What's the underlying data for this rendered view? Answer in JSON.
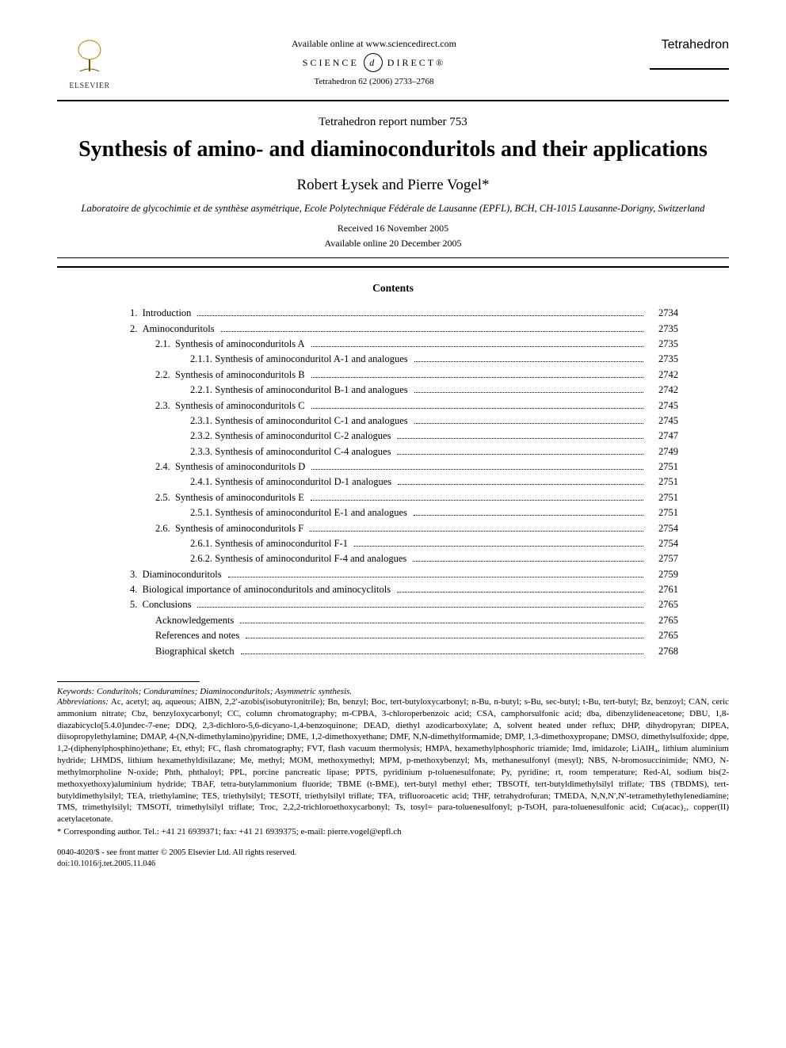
{
  "header": {
    "publisher": "ELSEVIER",
    "available_line": "Available online at www.sciencedirect.com",
    "sd_left": "SCIENCE",
    "sd_glyph": "d",
    "sd_right": "DIRECT®",
    "citation": "Tetrahedron 62 (2006) 2733–2768",
    "journal": "Tetrahedron"
  },
  "report_line": "Tetrahedron report number 753",
  "title": "Synthesis of amino- and diaminoconduritols and their applications",
  "authors": "Robert Łysek and Pierre Vogel*",
  "affiliation": "Laboratoire de glycochimie et de synthèse asymétrique, Ecole Polytechnique Fédérale de Lausanne (EPFL), BCH, CH-1015 Lausanne-Dorigny, Switzerland",
  "received": "Received 16 November 2005",
  "online": "Available online 20 December 2005",
  "contents_heading": "Contents",
  "toc": [
    {
      "num": "1.",
      "label": "Introduction",
      "page": "2734",
      "indent": 1
    },
    {
      "num": "2.",
      "label": "Aminoconduritols",
      "page": "2735",
      "indent": 1
    },
    {
      "num": "2.1.",
      "label": "Synthesis of aminoconduritols A",
      "page": "2735",
      "indent": 2
    },
    {
      "num": "2.1.1.",
      "label": "Synthesis of aminoconduritol A-1 and analogues",
      "page": "2735",
      "indent": 3
    },
    {
      "num": "2.2.",
      "label": "Synthesis of aminoconduritols B",
      "page": "2742",
      "indent": 2
    },
    {
      "num": "2.2.1.",
      "label": "Synthesis of aminoconduritol B-1 and analogues",
      "page": "2742",
      "indent": 3
    },
    {
      "num": "2.3.",
      "label": "Synthesis of aminoconduritols C",
      "page": "2745",
      "indent": 2
    },
    {
      "num": "2.3.1.",
      "label": "Synthesis of aminoconduritol C-1 and analogues",
      "page": "2745",
      "indent": 3
    },
    {
      "num": "2.3.2.",
      "label": "Synthesis of aminoconduritol C-2 analogues",
      "page": "2747",
      "indent": 3
    },
    {
      "num": "2.3.3.",
      "label": "Synthesis of aminoconduritol C-4 analogues",
      "page": "2749",
      "indent": 3
    },
    {
      "num": "2.4.",
      "label": "Synthesis of aminoconduritols D",
      "page": "2751",
      "indent": 2
    },
    {
      "num": "2.4.1.",
      "label": "Synthesis of aminoconduritol D-1 analogues",
      "page": "2751",
      "indent": 3
    },
    {
      "num": "2.5.",
      "label": "Synthesis of aminoconduritols E",
      "page": "2751",
      "indent": 2
    },
    {
      "num": "2.5.1.",
      "label": "Synthesis of aminoconduritol E-1 and analogues",
      "page": "2751",
      "indent": 3
    },
    {
      "num": "2.6.",
      "label": "Synthesis of aminoconduritols F",
      "page": "2754",
      "indent": 2
    },
    {
      "num": "2.6.1.",
      "label": "Synthesis of aminoconduritol F-1",
      "page": "2754",
      "indent": 3
    },
    {
      "num": "2.6.2.",
      "label": "Synthesis of aminoconduritol F-4 and analogues",
      "page": "2757",
      "indent": 3
    },
    {
      "num": "3.",
      "label": "Diaminoconduritols",
      "page": "2759",
      "indent": 1
    },
    {
      "num": "4.",
      "label": "Biological importance of aminoconduritols and aminocyclitols",
      "page": "2761",
      "indent": 1
    },
    {
      "num": "5.",
      "label": "Conclusions",
      "page": "2765",
      "indent": 1
    },
    {
      "num": "",
      "label": "Acknowledgements",
      "page": "2765",
      "indent": 2
    },
    {
      "num": "",
      "label": "References and notes",
      "page": "2765",
      "indent": 2
    },
    {
      "num": "",
      "label": "Biographical sketch",
      "page": "2768",
      "indent": 2
    }
  ],
  "keywords_label": "Keywords:",
  "keywords": " Conduritols; Conduramines; Diaminoconduritols; Asymmetric synthesis.",
  "abbrev_label": "Abbreviations:",
  "abbrev": " Ac, acetyl; aq, aqueous; AIBN, 2,2′-azobis(isobutyronitrile); Bn, benzyl; Boc, tert-butyloxycarbonyl; n-Bu, n-butyl; s-Bu, sec-butyl; t-Bu, tert-butyl; Bz, benzoyl; CAN, ceric ammonium nitrate; Cbz, benzyloxycarbonyl; CC, column chromatography; m-CPBA, 3-chloroperbenzoic acid; CSA, camphorsulfonic acid; dba, dibenzylideneacetone; DBU, 1,8-diazabicyclo[5.4.0]undec-7-ene; DDQ, 2,3-dichloro-5,6-dicyano-1,4-benzoquinone; DEAD, diethyl azodicarboxylate; Δ, solvent heated under reflux; DHP, dihydropyran; DIPEA, diisopropylethylamine; DMAP, 4-(N,N-dimethylamino)pyridine; DME, 1,2-dimethoxyethane; DMF, N,N-dimethylformamide; DMP, 1,3-dimethoxypropane; DMSO, dimethylsulfoxide; dppe, 1,2-(diphenylphosphino)ethane; Et, ethyl; FC, flash chromatography; FVT, flash vacuum thermolysis; HMPA, hexamethylphosphoric triamide; Imd, imidazole; LiAlH₄, lithium aluminium hydride; LHMDS, lithium hexamethyldisilazane; Me, methyl; MOM, methoxymethyl; MPM, p-methoxybenzyl; Ms, methanesulfonyl (mesyl); NBS, N-bromosuccinimide; NMO, N-methylmorpholine N-oxide; Phth, phthaloyl; PPL, porcine pancreatic lipase; PPTS, pyridinium p-toluenesulfonate; Py, pyridine; rt, room temperature; Red-Al, sodium bis(2-methoxyethoxy)aluminium hydride; TBAF, tetra-butylammonium fluoride; TBME (t-BME), tert-butyl methyl ether; TBSOTf, tert-butyldimethylsilyl triflate; TBS (TBDMS), tert-butyldimethylsilyl; TEA, triethylamine; TES, triethylsilyl; TESOTf, triethylsilyl triflate; TFA, trifluoroacetic acid; THF, tetrahydrofuran; TMEDA, N,N,N′,N′-tetramethylethylenediamine; TMS, trimethylsilyl; TMSOTf, trimethylsilyl triflate; Troc, 2,2,2-trichloroethoxycarbonyl; Ts, tosyl= para-toluenesulfonyl; p-TsOH, para-toluenesulfonic acid; Cu(acac)₂, copper(II) acetylacetonate.",
  "corresponding": "* Corresponding author. Tel.: +41 21 6939371; fax: +41 21 6939375; e-mail: pierre.vogel@epfl.ch",
  "copyright": "0040-4020/$ - see front matter © 2005 Elsevier Ltd. All rights reserved.",
  "doi": "doi:10.1016/j.tet.2005.11.046"
}
